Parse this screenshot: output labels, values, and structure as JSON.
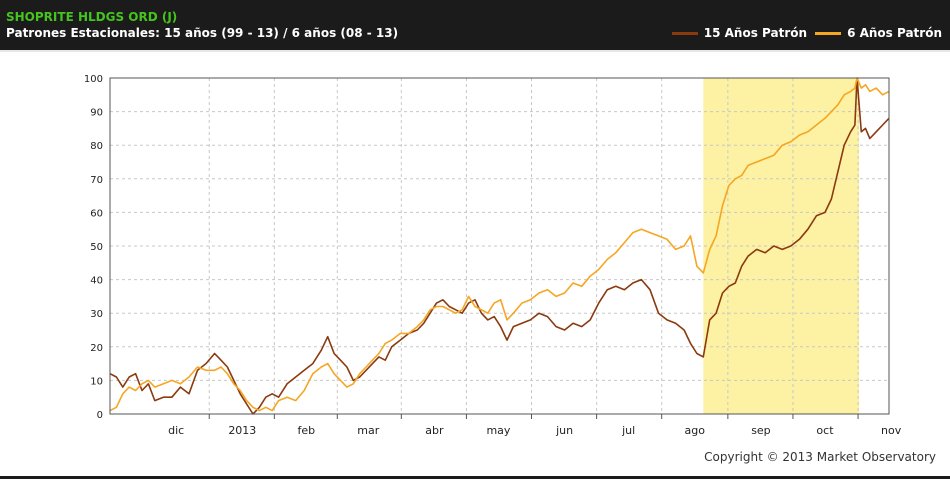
{
  "header": {
    "title": "SHOPRITE HLDGS ORD (J)",
    "subtitle": "Patrones Estacionales: 15 años (99 - 13) / 6 años (08 - 13)"
  },
  "legend": [
    {
      "label": "15 Años Patrón",
      "color": "#8b3a0f"
    },
    {
      "label": "6 Años Patrón",
      "color": "#f5a623"
    }
  ],
  "footer": {
    "copyright": "Copyright © 2013 Market Observatory"
  },
  "chart_data": {
    "type": "line",
    "title": "SHOPRITE HLDGS ORD (J)",
    "subtitle": "Patrones Estacionales: 15 años (99 - 13) / 6 años (08 - 13)",
    "xlabel": "",
    "ylabel": "",
    "ylim": [
      0,
      100
    ],
    "xlim": [
      "2012-11-15",
      "2013-11-15"
    ],
    "yticks": [
      0,
      10,
      20,
      30,
      40,
      50,
      60,
      70,
      80,
      90,
      100
    ],
    "xticks": [
      {
        "label": "dic",
        "date": "2012-12-16"
      },
      {
        "label": "2013",
        "date": "2013-01-16"
      },
      {
        "label": "feb",
        "date": "2013-02-15"
      },
      {
        "label": "mar",
        "date": "2013-03-16"
      },
      {
        "label": "abr",
        "date": "2013-04-16"
      },
      {
        "label": "may",
        "date": "2013-05-16"
      },
      {
        "label": "jun",
        "date": "2013-06-16"
      },
      {
        "label": "jul",
        "date": "2013-07-16"
      },
      {
        "label": "ago",
        "date": "2013-08-16"
      },
      {
        "label": "sep",
        "date": "2013-09-16"
      },
      {
        "label": "oct",
        "date": "2013-10-16"
      },
      {
        "label": "nov",
        "date": "2013-11-16"
      }
    ],
    "grid": true,
    "legend_position": "top-right",
    "highlight": {
      "from": "2013-08-20",
      "to": "2013-11-01",
      "color": "#fdf1a3"
    },
    "series": [
      {
        "name": "15 Años Patrón",
        "color": "#8b3a0f",
        "points": [
          [
            "2012-11-15",
            12
          ],
          [
            "2012-11-18",
            11
          ],
          [
            "2012-11-21",
            8
          ],
          [
            "2012-11-24",
            11
          ],
          [
            "2012-11-27",
            12
          ],
          [
            "2012-11-30",
            7
          ],
          [
            "2012-12-03",
            9
          ],
          [
            "2012-12-06",
            4
          ],
          [
            "2012-12-10",
            5
          ],
          [
            "2012-12-14",
            5
          ],
          [
            "2012-12-18",
            8
          ],
          [
            "2012-12-22",
            6
          ],
          [
            "2012-12-26",
            13
          ],
          [
            "2012-12-30",
            15
          ],
          [
            "2013-01-03",
            18
          ],
          [
            "2013-01-06",
            16
          ],
          [
            "2013-01-09",
            14
          ],
          [
            "2013-01-12",
            10
          ],
          [
            "2013-01-15",
            6
          ],
          [
            "2013-01-18",
            3
          ],
          [
            "2013-01-21",
            0
          ],
          [
            "2013-01-24",
            2
          ],
          [
            "2013-01-27",
            5
          ],
          [
            "2013-01-30",
            6
          ],
          [
            "2013-02-02",
            5
          ],
          [
            "2013-02-06",
            9
          ],
          [
            "2013-02-10",
            11
          ],
          [
            "2013-02-14",
            13
          ],
          [
            "2013-02-18",
            15
          ],
          [
            "2013-02-22",
            19
          ],
          [
            "2013-02-25",
            23
          ],
          [
            "2013-02-28",
            18
          ],
          [
            "2013-03-03",
            16
          ],
          [
            "2013-03-06",
            14
          ],
          [
            "2013-03-09",
            10
          ],
          [
            "2013-03-12",
            11
          ],
          [
            "2013-03-15",
            13
          ],
          [
            "2013-03-18",
            15
          ],
          [
            "2013-03-21",
            17
          ],
          [
            "2013-03-24",
            16
          ],
          [
            "2013-03-27",
            20
          ],
          [
            "2013-03-31",
            22
          ],
          [
            "2013-04-04",
            24
          ],
          [
            "2013-04-08",
            25
          ],
          [
            "2013-04-11",
            27
          ],
          [
            "2013-04-14",
            30
          ],
          [
            "2013-04-17",
            33
          ],
          [
            "2013-04-20",
            34
          ],
          [
            "2013-04-23",
            32
          ],
          [
            "2013-04-26",
            31
          ],
          [
            "2013-04-29",
            30
          ],
          [
            "2013-05-02",
            33
          ],
          [
            "2013-05-05",
            34
          ],
          [
            "2013-05-08",
            30
          ],
          [
            "2013-05-11",
            28
          ],
          [
            "2013-05-14",
            29
          ],
          [
            "2013-05-17",
            26
          ],
          [
            "2013-05-20",
            22
          ],
          [
            "2013-05-23",
            26
          ],
          [
            "2013-05-27",
            27
          ],
          [
            "2013-05-31",
            28
          ],
          [
            "2013-06-04",
            30
          ],
          [
            "2013-06-08",
            29
          ],
          [
            "2013-06-12",
            26
          ],
          [
            "2013-06-16",
            25
          ],
          [
            "2013-06-20",
            27
          ],
          [
            "2013-06-24",
            26
          ],
          [
            "2013-06-28",
            28
          ],
          [
            "2013-07-02",
            33
          ],
          [
            "2013-07-06",
            37
          ],
          [
            "2013-07-10",
            38
          ],
          [
            "2013-07-14",
            37
          ],
          [
            "2013-07-18",
            39
          ],
          [
            "2013-07-22",
            40
          ],
          [
            "2013-07-26",
            37
          ],
          [
            "2013-07-30",
            30
          ],
          [
            "2013-08-03",
            28
          ],
          [
            "2013-08-07",
            27
          ],
          [
            "2013-08-11",
            25
          ],
          [
            "2013-08-14",
            21
          ],
          [
            "2013-08-17",
            18
          ],
          [
            "2013-08-20",
            17
          ],
          [
            "2013-08-23",
            28
          ],
          [
            "2013-08-26",
            30
          ],
          [
            "2013-08-29",
            36
          ],
          [
            "2013-09-01",
            38
          ],
          [
            "2013-09-04",
            39
          ],
          [
            "2013-09-07",
            44
          ],
          [
            "2013-09-10",
            47
          ],
          [
            "2013-09-14",
            49
          ],
          [
            "2013-09-18",
            48
          ],
          [
            "2013-09-22",
            50
          ],
          [
            "2013-09-26",
            49
          ],
          [
            "2013-09-30",
            50
          ],
          [
            "2013-10-04",
            52
          ],
          [
            "2013-10-08",
            55
          ],
          [
            "2013-10-12",
            59
          ],
          [
            "2013-10-16",
            60
          ],
          [
            "2013-10-19",
            64
          ],
          [
            "2013-10-22",
            72
          ],
          [
            "2013-10-25",
            80
          ],
          [
            "2013-10-28",
            84
          ],
          [
            "2013-10-30",
            86
          ],
          [
            "2013-10-31",
            100
          ],
          [
            "2013-11-02",
            84
          ],
          [
            "2013-11-04",
            85
          ],
          [
            "2013-11-06",
            82
          ],
          [
            "2013-11-09",
            84
          ],
          [
            "2013-11-12",
            86
          ],
          [
            "2013-11-15",
            88
          ]
        ]
      },
      {
        "name": "6 Años Patrón",
        "color": "#f5a623",
        "points": [
          [
            "2012-11-15",
            1
          ],
          [
            "2012-11-18",
            2
          ],
          [
            "2012-11-21",
            6
          ],
          [
            "2012-11-24",
            8
          ],
          [
            "2012-11-27",
            7
          ],
          [
            "2012-11-30",
            9
          ],
          [
            "2012-12-03",
            10
          ],
          [
            "2012-12-06",
            8
          ],
          [
            "2012-12-10",
            9
          ],
          [
            "2012-12-14",
            10
          ],
          [
            "2012-12-18",
            9
          ],
          [
            "2012-12-22",
            11
          ],
          [
            "2012-12-26",
            14
          ],
          [
            "2012-12-30",
            13
          ],
          [
            "2013-01-03",
            13
          ],
          [
            "2013-01-06",
            14
          ],
          [
            "2013-01-09",
            12
          ],
          [
            "2013-01-12",
            9
          ],
          [
            "2013-01-15",
            7
          ],
          [
            "2013-01-18",
            4
          ],
          [
            "2013-01-21",
            2
          ],
          [
            "2013-01-24",
            1
          ],
          [
            "2013-01-27",
            2
          ],
          [
            "2013-01-30",
            1
          ],
          [
            "2013-02-02",
            4
          ],
          [
            "2013-02-06",
            5
          ],
          [
            "2013-02-10",
            4
          ],
          [
            "2013-02-14",
            7
          ],
          [
            "2013-02-18",
            12
          ],
          [
            "2013-02-22",
            14
          ],
          [
            "2013-02-25",
            15
          ],
          [
            "2013-02-28",
            12
          ],
          [
            "2013-03-03",
            10
          ],
          [
            "2013-03-06",
            8
          ],
          [
            "2013-03-09",
            9
          ],
          [
            "2013-03-12",
            12
          ],
          [
            "2013-03-15",
            14
          ],
          [
            "2013-03-18",
            16
          ],
          [
            "2013-03-21",
            18
          ],
          [
            "2013-03-24",
            21
          ],
          [
            "2013-03-27",
            22
          ],
          [
            "2013-03-31",
            24
          ],
          [
            "2013-04-04",
            24
          ],
          [
            "2013-04-08",
            26
          ],
          [
            "2013-04-11",
            28
          ],
          [
            "2013-04-14",
            31
          ],
          [
            "2013-04-17",
            32
          ],
          [
            "2013-04-20",
            32
          ],
          [
            "2013-04-23",
            31
          ],
          [
            "2013-04-26",
            30
          ],
          [
            "2013-04-29",
            31
          ],
          [
            "2013-05-02",
            35
          ],
          [
            "2013-05-05",
            32
          ],
          [
            "2013-05-08",
            31
          ],
          [
            "2013-05-11",
            30
          ],
          [
            "2013-05-14",
            33
          ],
          [
            "2013-05-17",
            34
          ],
          [
            "2013-05-20",
            28
          ],
          [
            "2013-05-23",
            30
          ],
          [
            "2013-05-27",
            33
          ],
          [
            "2013-05-31",
            34
          ],
          [
            "2013-06-04",
            36
          ],
          [
            "2013-06-08",
            37
          ],
          [
            "2013-06-12",
            35
          ],
          [
            "2013-06-16",
            36
          ],
          [
            "2013-06-20",
            39
          ],
          [
            "2013-06-24",
            38
          ],
          [
            "2013-06-28",
            41
          ],
          [
            "2013-07-02",
            43
          ],
          [
            "2013-07-06",
            46
          ],
          [
            "2013-07-10",
            48
          ],
          [
            "2013-07-14",
            51
          ],
          [
            "2013-07-18",
            54
          ],
          [
            "2013-07-22",
            55
          ],
          [
            "2013-07-26",
            54
          ],
          [
            "2013-07-30",
            53
          ],
          [
            "2013-08-03",
            52
          ],
          [
            "2013-08-07",
            49
          ],
          [
            "2013-08-11",
            50
          ],
          [
            "2013-08-14",
            53
          ],
          [
            "2013-08-17",
            44
          ],
          [
            "2013-08-20",
            42
          ],
          [
            "2013-08-23",
            49
          ],
          [
            "2013-08-26",
            53
          ],
          [
            "2013-08-29",
            62
          ],
          [
            "2013-09-01",
            68
          ],
          [
            "2013-09-04",
            70
          ],
          [
            "2013-09-07",
            71
          ],
          [
            "2013-09-10",
            74
          ],
          [
            "2013-09-14",
            75
          ],
          [
            "2013-09-18",
            76
          ],
          [
            "2013-09-22",
            77
          ],
          [
            "2013-09-26",
            80
          ],
          [
            "2013-09-30",
            81
          ],
          [
            "2013-10-04",
            83
          ],
          [
            "2013-10-08",
            84
          ],
          [
            "2013-10-12",
            86
          ],
          [
            "2013-10-16",
            88
          ],
          [
            "2013-10-19",
            90
          ],
          [
            "2013-10-22",
            92
          ],
          [
            "2013-10-25",
            95
          ],
          [
            "2013-10-28",
            96
          ],
          [
            "2013-10-30",
            97
          ],
          [
            "2013-10-31",
            100
          ],
          [
            "2013-11-02",
            97
          ],
          [
            "2013-11-04",
            98
          ],
          [
            "2013-11-06",
            96
          ],
          [
            "2013-11-09",
            97
          ],
          [
            "2013-11-12",
            95
          ],
          [
            "2013-11-15",
            96
          ]
        ]
      }
    ]
  }
}
